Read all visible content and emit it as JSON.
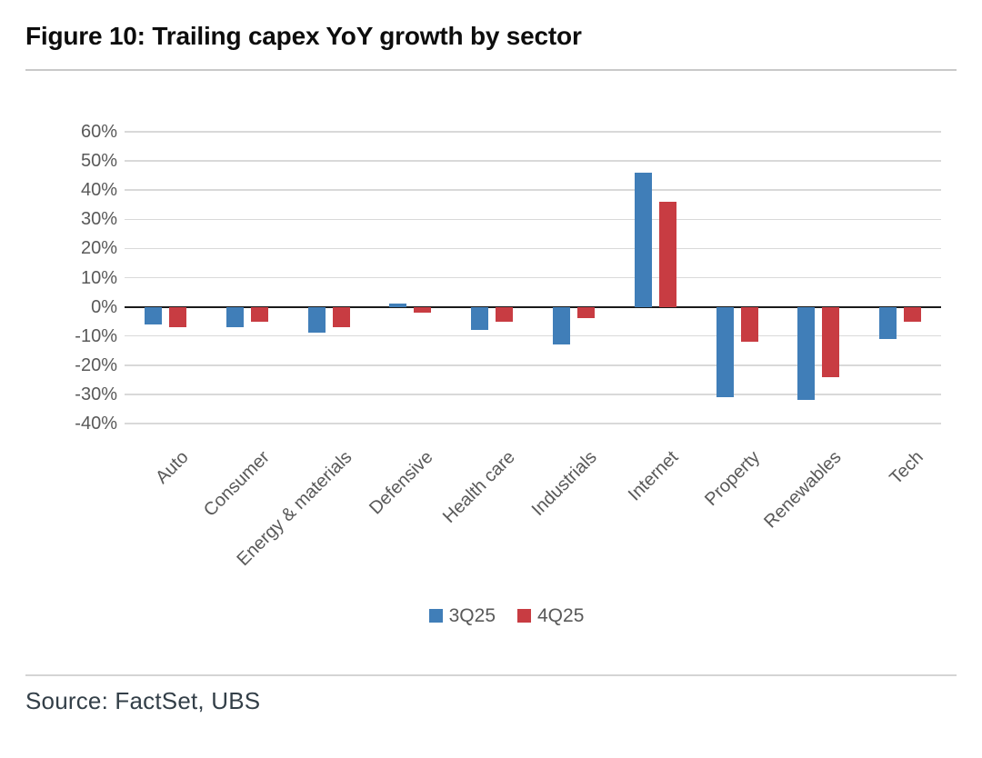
{
  "figure": {
    "title": "Figure 10: Trailing capex YoY growth by sector",
    "source": "Source: FactSet, UBS"
  },
  "chart_data": {
    "type": "bar",
    "title": "Figure 10: Trailing capex YoY growth by sector",
    "categories": [
      "Auto",
      "Consumer",
      "Energy & materials",
      "Defensive",
      "Health care",
      "Industrials",
      "Internet",
      "Property",
      "Renewables",
      "Tech"
    ],
    "series": [
      {
        "name": "3Q25",
        "color": "#407EB8",
        "values": [
          -6,
          -7,
          -9,
          1,
          -8,
          -13,
          46,
          -31,
          -32,
          -11
        ]
      },
      {
        "name": "4Q25",
        "color": "#C83C42",
        "values": [
          -7,
          -5,
          -7,
          -2,
          -5,
          -4,
          36,
          -12,
          -24,
          -5
        ]
      }
    ],
    "ylabel": "",
    "xlabel": "",
    "ylim": [
      -40,
      60
    ],
    "ytick_step": 10,
    "ytick_labels": [
      "60%",
      "50%",
      "40%",
      "30%",
      "20%",
      "10%",
      "0%",
      "-10%",
      "-20%",
      "-30%",
      "-40%"
    ],
    "grid": true,
    "zero_line": true,
    "legend_position": "bottom-center",
    "colors": {
      "grid": "#d9d9d9",
      "zero_line": "#1a1a1a",
      "tick_text": "#595959"
    }
  }
}
